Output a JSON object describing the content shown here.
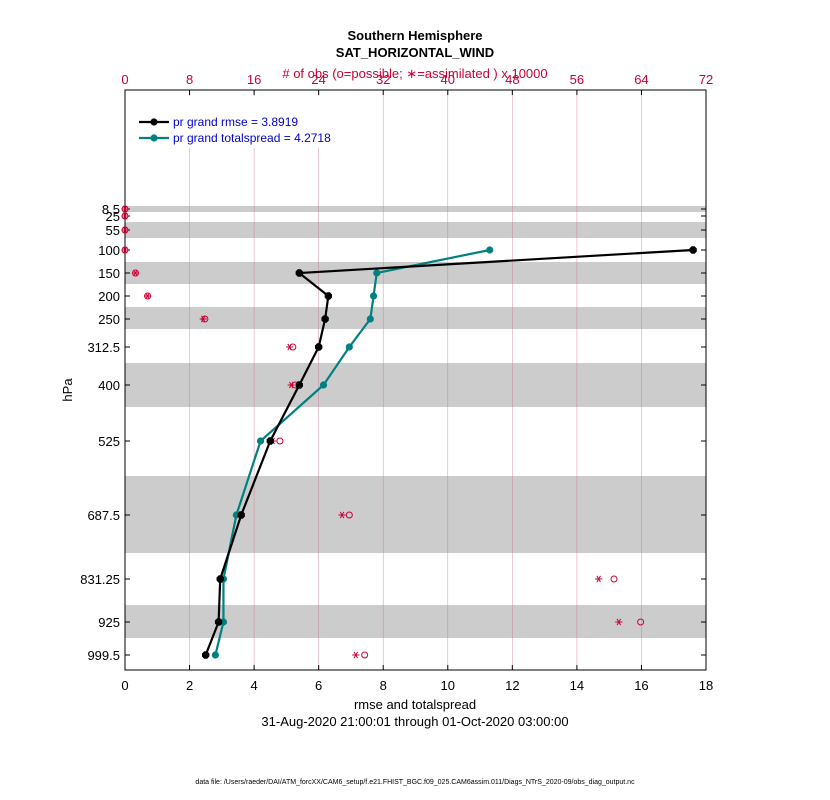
{
  "chart_data": {
    "type": "line",
    "title": "Southern Hemisphere",
    "subtitle": "SAT_HORIZONTAL_WIND",
    "top_axis_label": "# of obs (o=possible; ∗=assimilated ) x 10000",
    "xlabel": "rmse and totalspread",
    "ylabel": "hPa",
    "date_range": "31-Aug-2020 21:00:01 through 01-Oct-2020 03:00:00",
    "footnote": "data file: /Users/raeder/DAI/ATM_forcXX/CAM6_setup/f.e21.FHIST_BGC.f09_025.CAM6assim.011/Diags_NTrS_2020-09/obs_diag_output.nc",
    "xlim": [
      0,
      18
    ],
    "x_ticks": [
      "0",
      "2",
      "4",
      "6",
      "8",
      "10",
      "12",
      "14",
      "16",
      "18"
    ],
    "top_xlim": [
      0,
      72
    ],
    "top_ticks": [
      "0",
      "8",
      "16",
      "24",
      "32",
      "40",
      "48",
      "56",
      "64",
      "72"
    ],
    "levels": [
      "8.5",
      "25",
      "55",
      "100",
      "150",
      "200",
      "250",
      "312.5",
      "400",
      "525",
      "687.5",
      "831.25",
      "925",
      "999.5"
    ],
    "series": [
      {
        "name": "pr grand rmse = 3.8919",
        "color": "#000000",
        "levels": [
          "100",
          "150",
          "200",
          "250",
          "312.5",
          "400",
          "525",
          "687.5",
          "831.25",
          "925",
          "999.5"
        ],
        "values": [
          17.6,
          5.4,
          6.3,
          6.2,
          6.0,
          5.4,
          4.5,
          3.6,
          2.95,
          2.9,
          2.5
        ]
      },
      {
        "name": "pr grand totalspread = 4.2718",
        "color": "#008080",
        "levels": [
          "100",
          "150",
          "200",
          "250",
          "312.5",
          "400",
          "525",
          "687.5",
          "831.25",
          "925",
          "999.5"
        ],
        "values": [
          11.3,
          7.8,
          7.7,
          7.6,
          6.95,
          6.15,
          4.2,
          3.45,
          3.05,
          3.05,
          2.8
        ]
      }
    ],
    "obs_counts": {
      "unit": "x 10000",
      "color": "#cc0033",
      "levels": [
        "8.5",
        "25",
        "55",
        "100",
        "150",
        "200",
        "250",
        "312.5",
        "400",
        "525",
        "687.5",
        "831.25",
        "925",
        "999.5"
      ],
      "possible": [
        0,
        0,
        0,
        0,
        1.3,
        2.8,
        9.9,
        20.8,
        21.1,
        19.2,
        27.8,
        60.6,
        63.9,
        29.7
      ],
      "assimilated": [
        0,
        0,
        0,
        0,
        1.3,
        2.8,
        9.7,
        20.4,
        20.6,
        18.3,
        26.9,
        58.7,
        61.2,
        28.6
      ]
    },
    "shaded_bands": [
      [
        "8.5",
        "8.5"
      ],
      [
        "55",
        "55"
      ],
      [
        "150",
        "150"
      ],
      [
        "250",
        "250"
      ],
      [
        "400",
        "400"
      ],
      [
        "687.5",
        "687.5"
      ],
      [
        "925",
        "925"
      ]
    ],
    "legend_position": "top-left",
    "grid": true
  }
}
